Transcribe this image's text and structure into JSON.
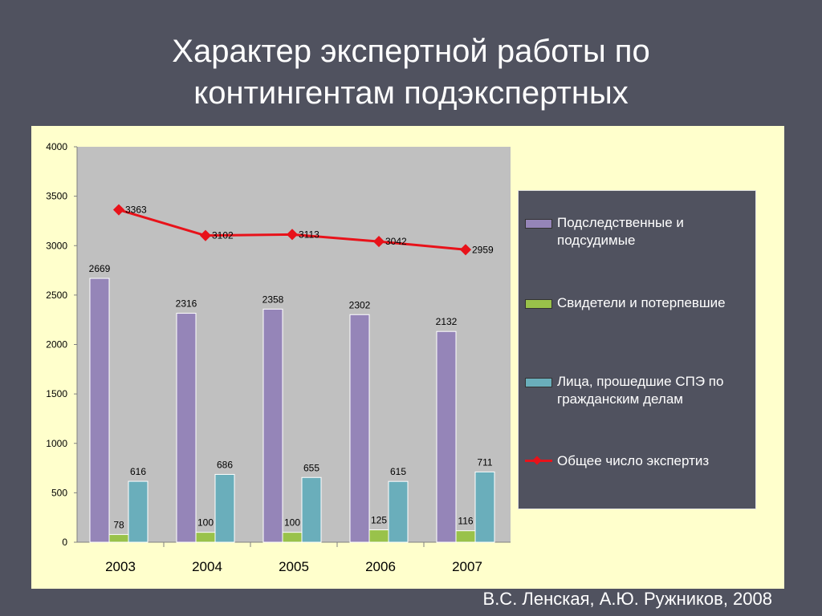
{
  "slide": {
    "title_line1": "Характер экспертной работы по",
    "title_line2": "контингентам  подэкспертных",
    "credit": "В.С. Ленская, А.Ю. Ружников, 2008"
  },
  "chart_data": {
    "type": "bar",
    "categories": [
      "2003",
      "2004",
      "2005",
      "2006",
      "2007"
    ],
    "ylim": [
      0,
      4000
    ],
    "yticks": [
      0,
      500,
      1000,
      1500,
      2000,
      2500,
      3000,
      3500,
      4000
    ],
    "grid": false,
    "legend_position": "right",
    "series": [
      {
        "name": "Подследственные и подсудимые",
        "type": "bar",
        "color": "#9585b8",
        "values": [
          2669,
          2316,
          2358,
          2302,
          2132
        ]
      },
      {
        "name": "Свидетели и потерпевшие",
        "type": "bar",
        "color": "#99c24a",
        "values": [
          78,
          100,
          100,
          125,
          116
        ]
      },
      {
        "name": "Лица, прошедшие СПЭ по гражданским делам",
        "type": "bar",
        "color": "#6aaebb",
        "values": [
          616,
          686,
          655,
          615,
          711
        ]
      },
      {
        "name": "Общее число экспертиз",
        "type": "line",
        "color": "#e8121a",
        "values": [
          3363,
          3102,
          3113,
          3042,
          2959
        ]
      }
    ]
  }
}
